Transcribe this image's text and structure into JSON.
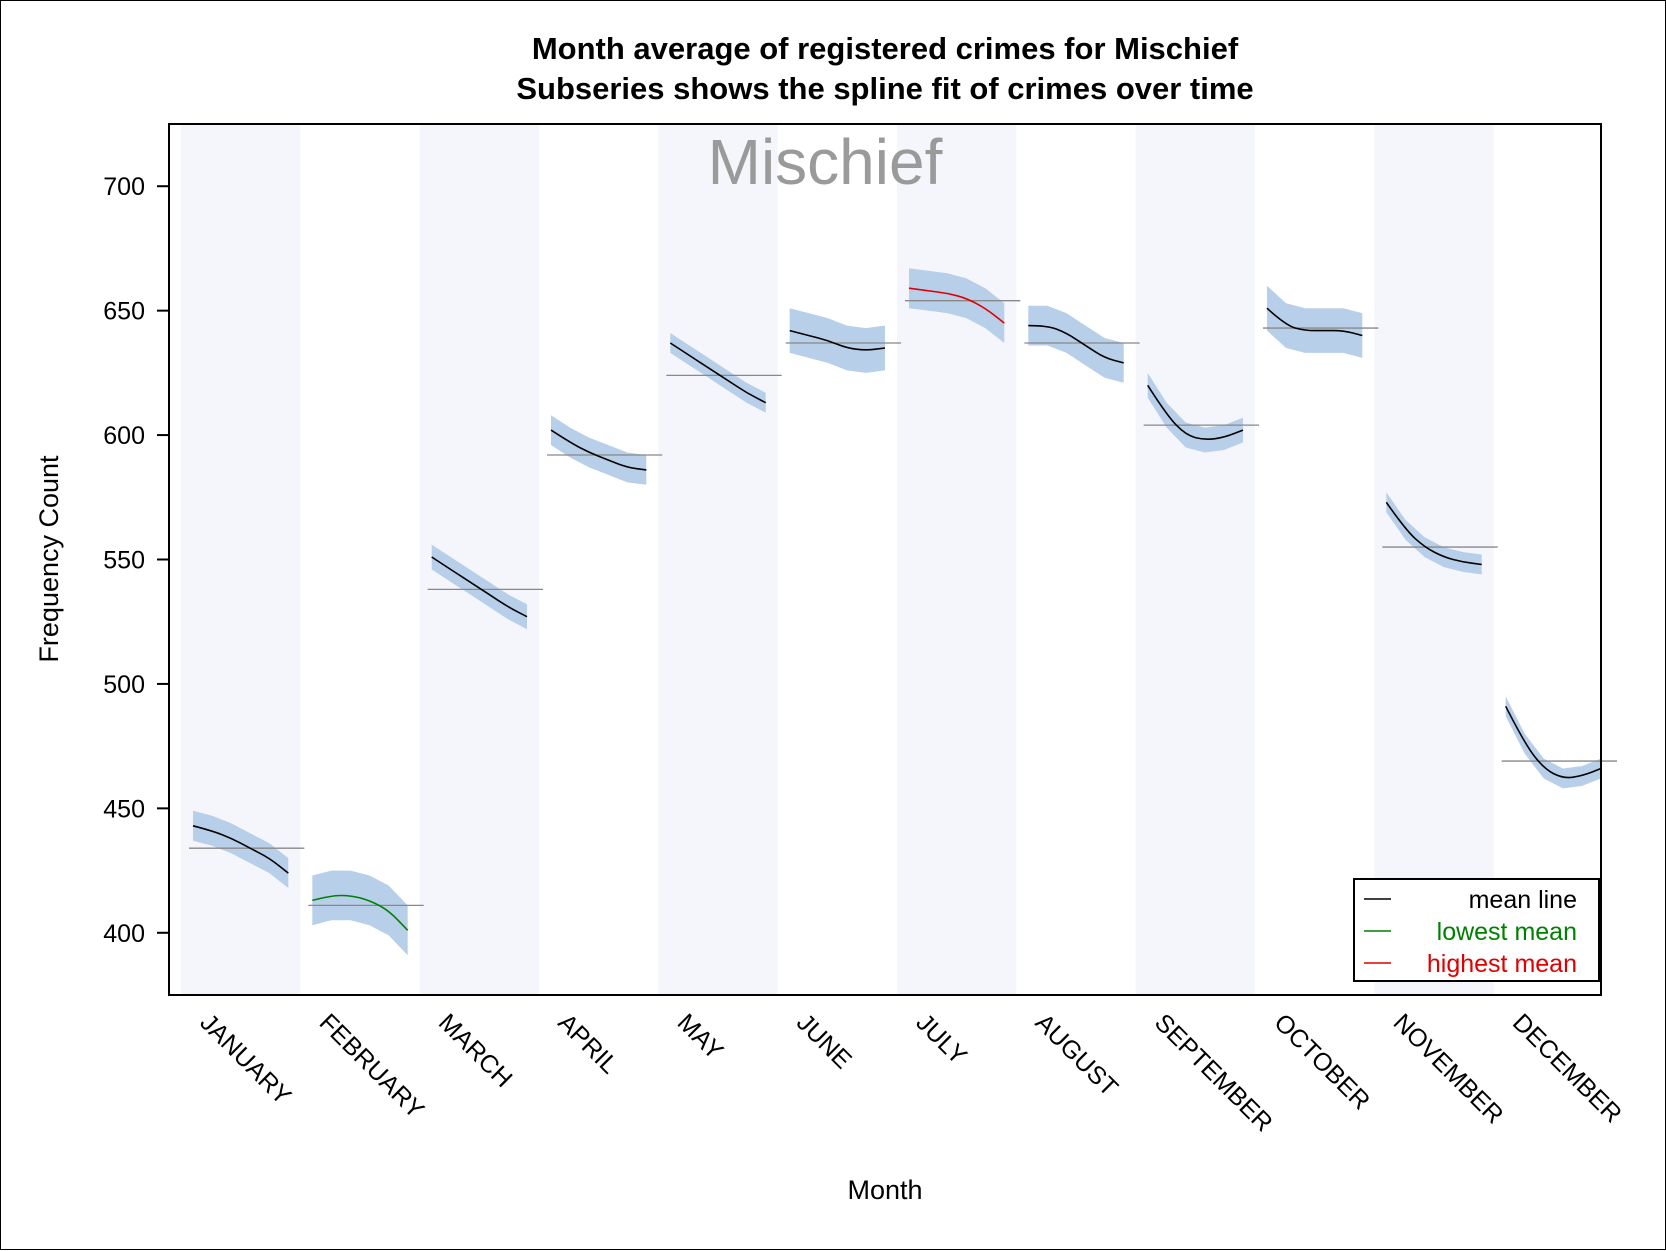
{
  "chart_data": {
    "type": "line",
    "title": "Month average of registered crimes for Mischief",
    "subtitle": "Subseries shows the spline fit of crimes over time",
    "watermark": "Mischief",
    "xlabel": "Month",
    "ylabel": "Frequency Count",
    "ylim": [
      375,
      725
    ],
    "yticks": [
      400,
      450,
      500,
      550,
      600,
      650,
      700
    ],
    "categories": [
      "JANUARY",
      "FEBRUARY",
      "MARCH",
      "APRIL",
      "MAY",
      "JUNE",
      "JULY",
      "AUGUST",
      "SEPTEMBER",
      "OCTOBER",
      "NOVEMBER",
      "DECEMBER"
    ],
    "means": [
      434,
      411,
      538,
      592,
      624,
      637,
      654,
      637,
      604,
      643,
      555,
      469
    ],
    "splines": [
      [
        443,
        441,
        438,
        434,
        430,
        424
      ],
      [
        413,
        415,
        415,
        413,
        409,
        401
      ],
      [
        551,
        546,
        541,
        536,
        531,
        527
      ],
      [
        602,
        597,
        593,
        590,
        587,
        586
      ],
      [
        637,
        632,
        627,
        622,
        617,
        613
      ],
      [
        642,
        640,
        638,
        635,
        634,
        635
      ],
      [
        659,
        658,
        657,
        655,
        651,
        645
      ],
      [
        644,
        644,
        641,
        636,
        631,
        629
      ],
      [
        620,
        608,
        600,
        598,
        599,
        602
      ],
      [
        651,
        644,
        642,
        642,
        642,
        640
      ],
      [
        573,
        562,
        555,
        551,
        549,
        548
      ],
      [
        491,
        476,
        466,
        462,
        463,
        466
      ]
    ],
    "band_halfwidth": [
      6,
      10,
      5,
      6,
      4,
      9,
      8,
      8,
      5,
      9,
      4,
      4
    ],
    "highlight": {
      "lowest": 1,
      "highest": 6
    },
    "legend": {
      "position": "bottom-right",
      "entries": [
        {
          "label": "mean line",
          "color": "#000000"
        },
        {
          "label": "lowest mean",
          "color": "#008000"
        },
        {
          "label": "highest mean",
          "color": "#e00000"
        }
      ]
    },
    "colors": {
      "band": "#b8cfe9",
      "stripe": "#f4f6fb",
      "mean_line": "#888888",
      "normal_spline": "#000000",
      "lowest": "#008000",
      "highest": "#e00000"
    }
  }
}
